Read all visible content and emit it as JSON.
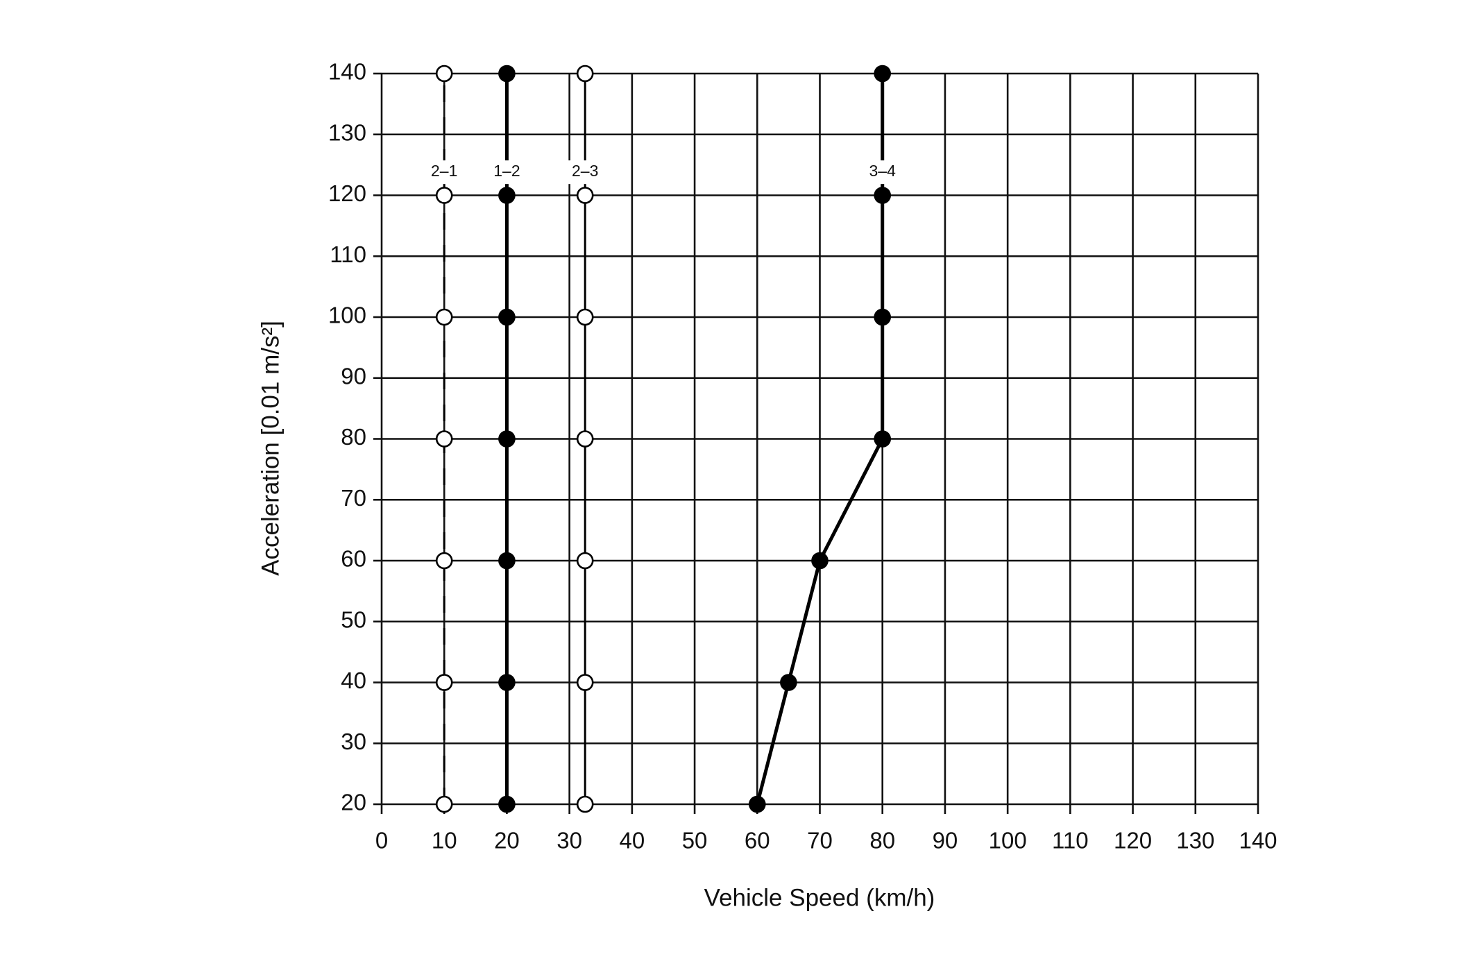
{
  "chart_data": {
    "type": "line",
    "x_label": "Vehicle Speed (km/h)",
    "y_label": "Acceleration [0.01 m/s²]",
    "xlim": [
      0,
      140
    ],
    "xticks": [
      0,
      10,
      20,
      30,
      40,
      50,
      60,
      70,
      80,
      90,
      100,
      110,
      120,
      130,
      140
    ],
    "ylim": [
      20,
      140
    ],
    "yticks": [
      20,
      30,
      40,
      50,
      60,
      70,
      80,
      90,
      100,
      110,
      120,
      130,
      140
    ],
    "grid": true,
    "series": [
      {
        "name": "2–1",
        "color": "#000000",
        "marker": "open",
        "line": "dashed",
        "x": [
          10,
          10,
          10,
          10,
          10,
          10,
          10
        ],
        "values": [
          20,
          40,
          60,
          80,
          100,
          120,
          140
        ]
      },
      {
        "name": "1–2",
        "color": "#000000",
        "marker": "filled",
        "line": "thick",
        "x": [
          20,
          20,
          20,
          20,
          20,
          20,
          20
        ],
        "values": [
          20,
          40,
          60,
          80,
          100,
          120,
          140
        ]
      },
      {
        "name": "2–3",
        "color": "#000000",
        "marker": "open",
        "line": "solid",
        "x": [
          32.5,
          32.5,
          32.5,
          32.5,
          32.5,
          32.5,
          32.5
        ],
        "values": [
          20,
          40,
          60,
          80,
          100,
          120,
          140
        ]
      },
      {
        "name": "3–4",
        "color": "#000000",
        "marker": "filled",
        "line": "thick",
        "x": [
          60,
          65,
          70,
          80,
          80,
          80,
          80
        ],
        "values": [
          20,
          40,
          60,
          80,
          100,
          120,
          140
        ]
      }
    ]
  }
}
